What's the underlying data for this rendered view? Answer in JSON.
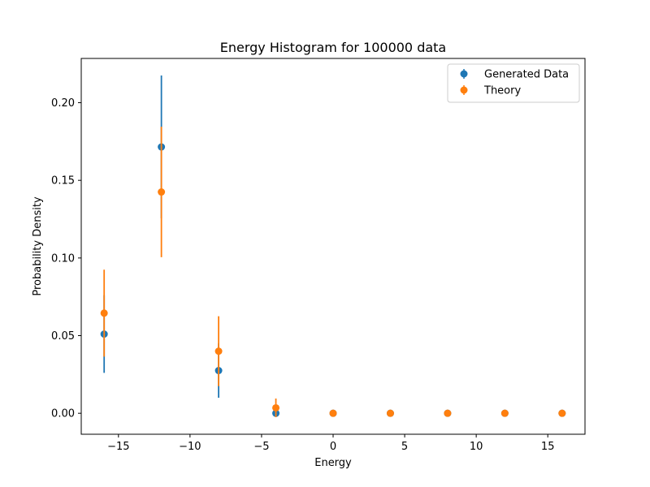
{
  "chart_data": {
    "type": "scatter",
    "title": "Energy Histogram for 100000 data",
    "xlabel": "Energy",
    "ylabel": "Probability Density",
    "xlim": [
      -17.6,
      17.6
    ],
    "ylim": [
      -0.0135,
      0.2285
    ],
    "xticks": [
      -15,
      -10,
      -5,
      0,
      5,
      10,
      15
    ],
    "xtick_labels": [
      "−15",
      "−10",
      "−5",
      "0",
      "5",
      "10",
      "15"
    ],
    "yticks": [
      0.0,
      0.05,
      0.1,
      0.15,
      0.2
    ],
    "ytick_labels": [
      "0.00",
      "0.05",
      "0.10",
      "0.15",
      "0.20"
    ],
    "grid": false,
    "legend_position": "top-right",
    "series": [
      {
        "name": "Generated Data",
        "color": "#1f77b4",
        "x": [
          -16,
          -12,
          -8,
          -4,
          0,
          4,
          8,
          12,
          16
        ],
        "y": [
          0.051,
          0.1715,
          0.0275,
          0.0,
          0.0,
          0.0,
          0.0,
          0.0,
          0.0
        ],
        "yerr": [
          0.025,
          0.046,
          0.0175,
          0.0,
          0.0,
          0.0,
          0.0,
          0.0,
          0.0
        ]
      },
      {
        "name": "Theory",
        "color": "#ff7f0e",
        "x": [
          -16,
          -12,
          -8,
          -4,
          0,
          4,
          8,
          12,
          16
        ],
        "y": [
          0.0645,
          0.1425,
          0.04,
          0.0035,
          0.0,
          0.0,
          0.0,
          0.0,
          0.0
        ],
        "yerr": [
          0.028,
          0.042,
          0.0225,
          0.006,
          0.0,
          0.0,
          0.0,
          0.0,
          0.0
        ]
      }
    ]
  }
}
